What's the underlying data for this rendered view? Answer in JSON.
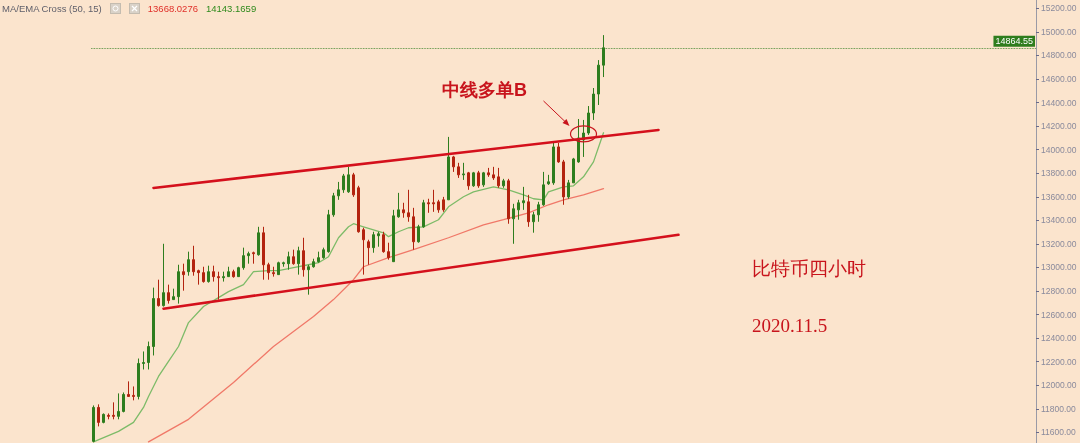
{
  "chart_data": {
    "type": "candlestick",
    "categories": [
      null,
      null,
      null,
      null,
      null,
      null,
      null,
      null,
      null,
      null,
      null,
      null,
      null,
      null,
      null,
      null,
      null,
      null,
      null,
      null,
      null,
      null,
      null,
      null,
      null,
      null,
      null,
      null,
      null,
      null,
      null,
      null,
      null,
      null,
      null,
      null,
      null,
      null,
      null,
      null,
      null,
      null,
      null,
      null,
      null,
      null,
      null,
      null,
      null,
      null,
      null,
      null,
      null,
      null,
      null,
      null,
      null,
      null,
      null,
      null,
      null,
      null,
      null,
      null,
      null,
      null,
      null,
      null,
      null,
      null,
      null,
      null,
      null,
      null,
      null,
      null,
      null,
      null,
      null,
      null,
      null,
      null,
      null,
      null,
      null,
      null,
      null,
      null,
      null,
      null,
      null,
      null,
      null,
      null,
      null,
      null,
      null,
      null,
      null,
      null,
      null,
      null,
      null,
      null,
      null,
      null,
      null,
      null,
      null,
      null,
      null,
      null,
      null,
      null,
      null,
      null,
      null,
      null,
      null,
      null,
      null,
      null,
      null,
      null,
      null,
      null,
      null,
      null,
      null,
      null,
      null,
      null,
      null,
      null,
      null,
      null,
      null,
      null,
      null,
      null,
      null,
      null,
      null,
      null,
      null,
      null,
      null,
      null,
      null,
      null,
      null,
      null,
      null,
      null,
      null,
      null,
      null,
      null,
      null,
      null,
      null,
      null,
      null,
      null,
      null,
      null,
      null,
      null,
      null,
      null,
      null,
      null,
      null,
      null,
      null,
      null,
      null,
      null,
      null,
      null,
      null,
      null,
      null,
      null,
      null,
      null,
      null,
      null,
      null
    ],
    "ohlc": [
      [
        11524,
        11829,
        11516,
        11812
      ],
      [
        11812,
        11838,
        11651,
        11685
      ],
      [
        11685,
        11761,
        11677,
        11753
      ],
      [
        11745,
        11761,
        11711,
        11736
      ],
      [
        11745,
        11855,
        11711,
        11736
      ],
      [
        11736,
        11931,
        11711,
        11778
      ],
      [
        11778,
        11939,
        11770,
        11922
      ],
      [
        11922,
        12033,
        11905,
        11905
      ],
      [
        11914,
        11990,
        11872,
        11905
      ],
      [
        11905,
        12227,
        11880,
        12185
      ],
      [
        12185,
        12287,
        12134,
        12193
      ],
      [
        12193,
        12371,
        12134,
        12329
      ],
      [
        12329,
        12829,
        12253,
        12736
      ],
      [
        12736,
        12896,
        12668,
        12676
      ],
      [
        12676,
        13201,
        12668,
        12786
      ],
      [
        12786,
        12854,
        12693,
        12719
      ],
      [
        12727,
        12820,
        12727,
        12752
      ],
      [
        12752,
        13023,
        12693,
        12964
      ],
      [
        12964,
        13032,
        12803,
        12939
      ],
      [
        12964,
        13134,
        12930,
        13066
      ],
      [
        13066,
        13184,
        12930,
        12964
      ],
      [
        12973,
        12981,
        12854,
        12956
      ],
      [
        12956,
        13006,
        12871,
        12880
      ],
      [
        12880,
        13015,
        12871,
        12964
      ],
      [
        12964,
        13015,
        12880,
        12922
      ],
      [
        12922,
        12964,
        12727,
        12913
      ],
      [
        12913,
        12964,
        12880,
        12922
      ],
      [
        12922,
        13006,
        12922,
        12964
      ],
      [
        12964,
        12981,
        12913,
        12922
      ],
      [
        12922,
        13006,
        12922,
        12998
      ],
      [
        12998,
        13168,
        12981,
        13100
      ],
      [
        13100,
        13134,
        13032,
        13117
      ],
      [
        13125,
        13134,
        13032,
        13117
      ],
      [
        13108,
        13345,
        13100,
        13294
      ],
      [
        13294,
        13345,
        12896,
        13023
      ],
      [
        13023,
        13040,
        12896,
        12956
      ],
      [
        12956,
        13006,
        12922,
        12947
      ],
      [
        12939,
        13049,
        12939,
        13040
      ],
      [
        13032,
        13049,
        13006,
        13040
      ],
      [
        13032,
        13134,
        12981,
        13091
      ],
      [
        13091,
        13151,
        13023,
        13032
      ],
      [
        13032,
        13176,
        12939,
        13142
      ],
      [
        13142,
        13252,
        12922,
        12981
      ],
      [
        12981,
        13023,
        12769,
        13006
      ],
      [
        13006,
        13074,
        12998,
        13049
      ],
      [
        13049,
        13134,
        13040,
        13083
      ],
      [
        13083,
        13168,
        13074,
        13150
      ],
      [
        13134,
        13489,
        13125,
        13447
      ],
      [
        13447,
        13633,
        13430,
        13608
      ],
      [
        13608,
        13726,
        13574,
        13659
      ],
      [
        13659,
        13794,
        13633,
        13777
      ],
      [
        13642,
        13854,
        13633,
        13786
      ],
      [
        13786,
        13803,
        13599,
        13616
      ],
      [
        13676,
        13693,
        13295,
        13303
      ],
      [
        13320,
        13337,
        12939,
        13235
      ],
      [
        13218,
        13235,
        13023,
        13168
      ],
      [
        13168,
        13303,
        13125,
        13278
      ],
      [
        13269,
        13303,
        13176,
        13286
      ],
      [
        13278,
        13303,
        13125,
        13134
      ],
      [
        13134,
        13210,
        13066,
        13083
      ],
      [
        13049,
        13489,
        13049,
        13438
      ],
      [
        13430,
        13633,
        13422,
        13489
      ],
      [
        13489,
        13549,
        13422,
        13464
      ],
      [
        13464,
        13659,
        13388,
        13430
      ],
      [
        13430,
        13506,
        13151,
        13218
      ],
      [
        13218,
        13362,
        13210,
        13345
      ],
      [
        13345,
        13574,
        13337,
        13549
      ],
      [
        13549,
        13583,
        13464,
        13540
      ],
      [
        13549,
        13659,
        13472,
        13540
      ],
      [
        13557,
        13574,
        13464,
        13489
      ],
      [
        13574,
        13599,
        13472,
        13489
      ],
      [
        13574,
        14108,
        13574,
        13938
      ],
      [
        13938,
        13947,
        13811,
        13854
      ],
      [
        13854,
        13888,
        13760,
        13786
      ],
      [
        13786,
        13888,
        13743,
        13794
      ],
      [
        13803,
        13811,
        13659,
        13693
      ],
      [
        13693,
        13811,
        13684,
        13803
      ],
      [
        13803,
        13820,
        13676,
        13693
      ],
      [
        13701,
        13811,
        13684,
        13803
      ],
      [
        13803,
        13845,
        13769,
        13786
      ],
      [
        13786,
        13854,
        13743,
        13760
      ],
      [
        13769,
        13845,
        13676,
        13693
      ],
      [
        13693,
        13752,
        13676,
        13735
      ],
      [
        13735,
        13752,
        13371,
        13413
      ],
      [
        13413,
        13540,
        13201,
        13498
      ],
      [
        13489,
        13574,
        13405,
        13549
      ],
      [
        13549,
        13684,
        13489,
        13566
      ],
      [
        13557,
        13616,
        13345,
        13388
      ],
      [
        13388,
        13472,
        13295,
        13447
      ],
      [
        13447,
        13557,
        13388,
        13532
      ],
      [
        13532,
        13811,
        13523,
        13701
      ],
      [
        13710,
        13786,
        13701,
        13727
      ],
      [
        13718,
        14057,
        13701,
        14023
      ],
      [
        14023,
        14057,
        13888,
        13896
      ],
      [
        13896,
        13913,
        13532,
        13599
      ],
      [
        13599,
        13743,
        13583,
        13718
      ],
      [
        13718,
        13930,
        13718,
        13921
      ],
      [
        13896,
        14260,
        13888,
        14099
      ],
      [
        14082,
        14252,
        13938,
        14141
      ],
      [
        14141,
        14370,
        14125,
        14311
      ],
      [
        14311,
        14523,
        14252,
        14472
      ],
      [
        14472,
        14760,
        14379,
        14717
      ],
      [
        14717,
        14972,
        14616,
        14864.55
      ],
      null,
      null,
      null,
      null,
      null,
      null,
      null,
      null,
      null,
      null,
      null,
      null,
      null,
      null,
      null,
      null,
      null,
      null,
      null,
      null,
      null,
      null,
      null,
      null,
      null,
      null,
      null,
      null,
      null,
      null,
      null,
      null,
      null,
      null,
      null,
      null,
      null,
      null,
      null,
      null,
      null,
      null,
      null,
      null,
      null,
      null,
      null,
      null,
      null,
      null,
      null,
      null,
      null,
      null,
      null,
      null,
      null,
      null,
      null,
      null,
      null,
      null,
      null,
      null,
      null,
      null,
      null,
      null,
      null,
      null,
      null,
      null,
      null,
      null,
      null,
      null,
      null,
      null,
      null,
      null,
      null,
      null,
      null,
      null,
      null,
      null
    ],
    "colors": [
      "#2e7d1e",
      "#b3230f",
      "#2e7d1e",
      "#b3230f",
      "#b3230f",
      "#2e7d1e",
      "#2e7d1e",
      "#b3230f",
      "#b3230f",
      "#2e7d1e",
      "#2e7d1e",
      "#2e7d1e",
      "#2e7d1e",
      "#b3230f",
      "#2e7d1e",
      "#b3230f",
      "#2e7d1e",
      "#2e7d1e",
      "#b3230f",
      "#2e7d1e",
      "#b3230f",
      "#b3230f",
      "#b3230f",
      "#2e7d1e",
      "#b3230f",
      "#b3230f",
      "#2e7d1e",
      "#2e7d1e",
      "#b3230f",
      "#2e7d1e",
      "#2e7d1e",
      "#2e7d1e",
      "#b3230f",
      "#2e7d1e",
      "#b3230f",
      "#b3230f",
      "#b3230f",
      "#2e7d1e",
      "#2e7d1e",
      "#2e7d1e",
      "#b3230f",
      "#2e7d1e",
      "#b3230f",
      "#2e7d1e",
      "#2e7d1e",
      "#2e7d1e",
      "#2e7d1e",
      "#2e7d1e",
      "#2e7d1e",
      "#2e7d1e",
      "#2e7d1e",
      "#2e7d1e",
      "#b3230f",
      "#b3230f",
      "#b3230f",
      "#b3230f",
      "#2e7d1e",
      "#2e7d1e",
      "#b3230f",
      "#b3230f",
      "#2e7d1e",
      "#2e7d1e",
      "#b3230f",
      "#b3230f",
      "#b3230f",
      "#2e7d1e",
      "#2e7d1e",
      "#b3230f",
      "#b3230f",
      "#b3230f",
      "#b3230f",
      "#2e7d1e",
      "#b3230f",
      "#b3230f",
      "#2e7d1e",
      "#b3230f",
      "#2e7d1e",
      "#b3230f",
      "#2e7d1e",
      "#b3230f",
      "#b3230f",
      "#b3230f",
      "#2e7d1e",
      "#b3230f",
      "#2e7d1e",
      "#2e7d1e",
      "#2e7d1e",
      "#b3230f",
      "#2e7d1e",
      "#2e7d1e",
      "#2e7d1e",
      "#2e7d1e",
      "#2e7d1e",
      "#b3230f",
      "#b3230f",
      "#2e7d1e",
      "#2e7d1e",
      "#2e7d1e",
      "#2e7d1e",
      "#2e7d1e",
      "#2e7d1e",
      "#2e7d1e",
      "#2e7d1e",
      null,
      null,
      null,
      null,
      null,
      null,
      null,
      null,
      null,
      null,
      null,
      null,
      null,
      null,
      null,
      null,
      null,
      null,
      null,
      null,
      null,
      null,
      null,
      null,
      null,
      null,
      null,
      null,
      null,
      null,
      null,
      null,
      null,
      null,
      null,
      null,
      null,
      null,
      null,
      null,
      null,
      null,
      null,
      null,
      null,
      null,
      null,
      null,
      null,
      null,
      null,
      null,
      null,
      null,
      null,
      null,
      null,
      null,
      null,
      null,
      null,
      null,
      null,
      null,
      null,
      null,
      null,
      null,
      null,
      null,
      null,
      null,
      null,
      null,
      null,
      null,
      null,
      null,
      null,
      null,
      null,
      null,
      null,
      null,
      null,
      null
    ],
    "series": [
      {
        "type": "line",
        "color": "#7dbb68",
        "values": [
          11520,
          null,
          null,
          null,
          null,
          11609,
          null,
          null,
          11685,
          null,
          11812,
          11905,
          null,
          12075,
          null,
          12202,
          null,
          12329,
          null,
          12532,
          null,
          null,
          12668,
          null,
          null,
          12744,
          null,
          12795,
          null,
          null,
          12854,
          null,
          12964,
          null,
          null,
          12973,
          null,
          12973,
          null,
          null,
          12998,
          null,
          null,
          13023,
          null,
          13040,
          null,
          13091,
          null,
          13252,
          null,
          13345,
          13371,
          null,
          13345,
          null,
          null,
          null,
          13294,
          13261,
          null,
          13303,
          null,
          13337,
          null,
          null,
          13345,
          null,
          null,
          13405,
          null,
          13515,
          null,
          null,
          13600,
          null,
          13642,
          null,
          null,
          null,
          13684,
          null,
          null,
          13659,
          null,
          null,
          13616,
          null,
          13583,
          null,
          13574,
          13642,
          null,
          null,
          13684,
          null,
          13693,
          null,
          13769,
          null,
          13896,
          null,
          14143,
          null,
          null,
          null,
          null,
          null,
          null,
          null,
          null,
          null,
          null,
          null,
          null,
          null,
          null,
          null,
          null,
          null,
          null,
          null,
          null,
          null,
          null,
          null,
          null,
          null,
          null,
          null,
          null,
          null,
          null,
          null,
          null,
          null,
          null,
          null,
          null,
          null,
          null,
          null,
          null,
          null,
          null,
          null,
          null,
          null,
          null,
          null,
          null,
          null,
          null,
          null,
          null,
          null,
          null,
          null,
          null,
          null,
          null,
          null,
          null,
          null,
          null,
          null,
          null,
          null,
          null,
          null,
          null,
          null,
          null,
          null,
          null,
          null,
          null,
          null,
          null,
          null,
          null,
          null,
          null,
          null,
          null,
          null,
          null,
          null,
          null
        ]
      },
      {
        "type": "line",
        "color": "#f07868",
        "values": [
          null,
          null,
          null,
          null,
          null,
          null,
          null,
          null,
          null,
          null,
          null,
          11520,
          null,
          null,
          null,
          null,
          null,
          null,
          null,
          11711,
          null,
          null,
          null,
          null,
          null,
          null,
          null,
          null,
          12024,
          null,
          null,
          null,
          null,
          null,
          null,
          null,
          12329,
          null,
          null,
          null,
          null,
          null,
          null,
          null,
          12583,
          null,
          null,
          null,
          12727,
          null,
          null,
          null,
          12896,
          null,
          13006,
          null,
          null,
          null,
          null,
          13083,
          null,
          null,
          null,
          null,
          13151,
          null,
          null,
          null,
          null,
          null,
          null,
          13252,
          null,
          null,
          null,
          null,
          null,
          null,
          13362,
          null,
          null,
          null,
          13405,
          null,
          null,
          null,
          null,
          13464,
          null,
          null,
          null,
          13532,
          null,
          null,
          13574,
          null,
          null,
          null,
          13616,
          null,
          null,
          null,
          13668,
          null,
          null,
          null,
          null,
          null,
          null,
          null,
          null,
          null,
          null,
          null,
          null,
          null,
          null,
          null,
          null,
          null,
          null,
          null,
          null,
          null,
          null,
          null,
          null,
          null,
          null,
          null,
          null,
          null,
          null,
          null,
          null,
          null,
          null,
          null,
          null,
          null,
          null,
          null,
          null,
          null,
          null,
          null,
          null,
          null,
          null,
          null,
          null,
          null,
          null,
          null,
          null,
          null,
          null,
          null,
          null,
          null,
          null,
          null,
          null,
          null,
          null,
          null,
          null,
          null,
          null,
          null,
          null,
          null,
          null,
          null,
          null,
          null,
          null,
          null,
          null,
          null,
          null,
          null,
          null,
          null,
          null,
          null,
          null,
          null,
          null
        ]
      },
      {
        "type": "line",
        "color": "#d4101c",
        "values": [
          null,
          null,
          null,
          null,
          null,
          null,
          null,
          null,
          null,
          null,
          null,
          null,
          13675,
          null,
          null,
          null,
          null,
          null,
          null,
          null,
          null,
          null,
          null,
          null,
          null,
          null,
          null,
          null,
          null,
          null,
          null,
          null,
          null,
          null,
          null,
          null,
          null,
          null,
          null,
          null,
          null,
          null,
          null,
          null,
          null,
          null,
          null,
          null,
          null,
          null,
          null,
          null,
          null,
          null,
          null,
          null,
          null,
          null,
          null,
          null,
          null,
          null,
          null,
          null,
          null,
          null,
          null,
          null,
          null,
          null,
          null,
          null,
          null,
          null,
          null,
          null,
          null,
          null,
          null,
          null,
          null,
          null,
          null,
          null,
          null,
          null,
          null,
          null,
          null,
          null,
          null,
          null,
          null,
          null,
          null,
          null,
          null,
          null,
          null,
          null,
          null,
          null,
          null,
          null,
          null,
          null,
          null,
          null,
          null,
          null,
          null,
          null,
          null,
          14167,
          null,
          null,
          null,
          null,
          null,
          null,
          null,
          null,
          null,
          null,
          null,
          null,
          null,
          null,
          null,
          null,
          null,
          null,
          null,
          null,
          null,
          null,
          null,
          null,
          null,
          null,
          null,
          null,
          null,
          null,
          null,
          null,
          null,
          null,
          null,
          null,
          null,
          null,
          null,
          null,
          null,
          null,
          null,
          null,
          null,
          null,
          null,
          null,
          null,
          null,
          null,
          null,
          null,
          null,
          null,
          null,
          null,
          null,
          null,
          null,
          null,
          null,
          null,
          null,
          null,
          null,
          null,
          null,
          null,
          null,
          null,
          null,
          null,
          null,
          null
        ]
      },
      {
        "type": "line",
        "color": "#d4101c",
        "values": [
          null,
          null,
          null,
          null,
          null,
          null,
          null,
          null,
          null,
          null,
          null,
          null,
          null,
          null,
          12650,
          null,
          null,
          null,
          null,
          null,
          null,
          null,
          null,
          null,
          null,
          null,
          null,
          null,
          null,
          null,
          null,
          null,
          null,
          null,
          null,
          null,
          null,
          null,
          null,
          null,
          null,
          null,
          null,
          null,
          null,
          null,
          null,
          null,
          null,
          null,
          null,
          null,
          null,
          null,
          null,
          null,
          null,
          null,
          null,
          null,
          null,
          null,
          null,
          null,
          null,
          null,
          null,
          null,
          null,
          null,
          null,
          null,
          null,
          null,
          null,
          null,
          null,
          null,
          null,
          null,
          null,
          null,
          null,
          null,
          null,
          null,
          null,
          null,
          null,
          null,
          null,
          null,
          null,
          null,
          null,
          null,
          null,
          null,
          null,
          null,
          null,
          null,
          null,
          null,
          null,
          null,
          null,
          null,
          null,
          null,
          null,
          null,
          null,
          null,
          null,
          null,
          null,
          13277,
          null,
          null,
          null,
          null,
          null,
          null,
          null,
          null,
          null,
          null,
          null,
          null,
          null,
          null,
          null,
          null,
          null,
          null,
          null,
          null,
          null,
          null,
          null,
          null,
          null,
          null,
          null,
          null,
          null,
          null,
          null,
          null,
          null,
          null,
          null,
          null,
          null,
          null,
          null,
          null,
          null,
          null,
          null,
          null,
          null,
          null,
          null,
          null,
          null,
          null,
          null,
          null,
          null,
          null,
          null,
          null,
          null,
          null,
          null,
          null,
          null,
          null,
          null,
          null,
          null,
          null,
          null,
          null,
          null,
          null,
          null
        ]
      }
    ],
    "ylim": [
      11510,
      15270
    ],
    "yticks": [
      {
        "value": 11600,
        "label": "11600.00"
      },
      {
        "value": 11800,
        "label": "11800.00"
      },
      {
        "value": 12000,
        "label": "12000.00"
      },
      {
        "value": 12200,
        "label": "12200.00"
      },
      {
        "value": 12400,
        "label": "12400.00"
      },
      {
        "value": 12600,
        "label": "12600.00"
      },
      {
        "value": 12800,
        "label": "12800.00"
      },
      {
        "value": 13000,
        "label": "13000.00"
      },
      {
        "value": 13200,
        "label": "13200.00"
      },
      {
        "value": 13400,
        "label": "13400.00"
      },
      {
        "value": 13600,
        "label": "13600.00"
      },
      {
        "value": 13800,
        "label": "13800.00"
      },
      {
        "value": 14000,
        "label": "14000.00"
      },
      {
        "value": 14200,
        "label": "14200.00"
      },
      {
        "value": 14400,
        "label": "14400.00"
      },
      {
        "value": 14600,
        "label": "14600.00"
      },
      {
        "value": 14800,
        "label": "14800.00"
      },
      {
        "value": 15000,
        "label": "15000.00"
      },
      {
        "value": 15200,
        "label": "15200.00"
      }
    ],
    "ref_lines": [
      {
        "axis": "y",
        "value": 14864.55,
        "label": "14864.55",
        "color": "#2e7d1e",
        "line_style": "dotted"
      }
    ],
    "annotations": [
      "MA/EMA Cross (50, 15)",
      "13668.0276",
      "14143.1659",
      "中线多单B",
      "比特币四小时",
      "2020.11.5"
    ],
    "tick_labels": "y",
    "grid": false
  }
}
